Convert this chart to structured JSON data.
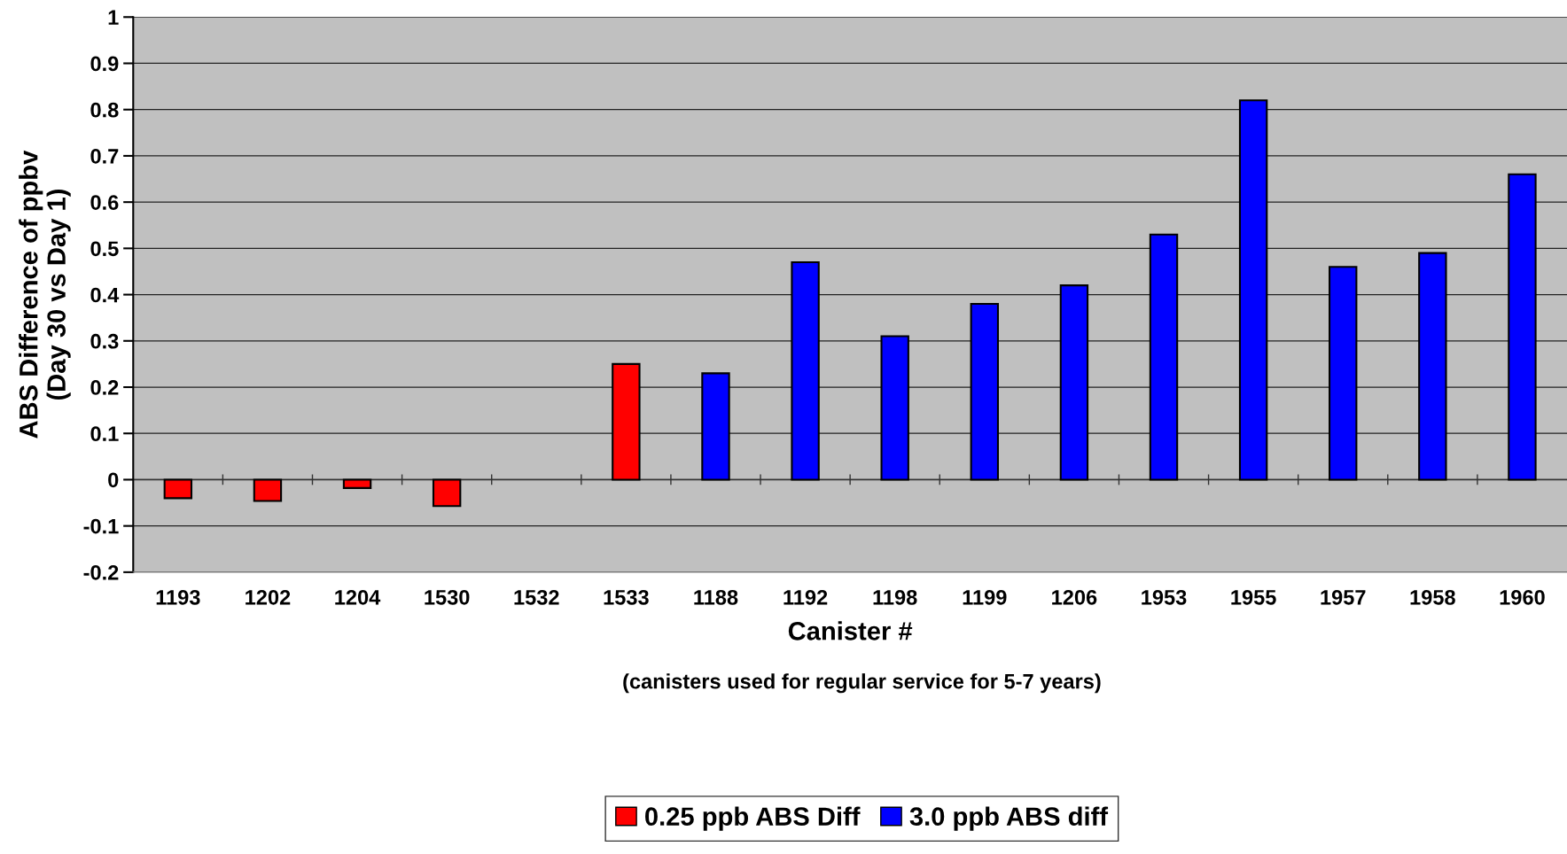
{
  "chart_data": {
    "type": "bar",
    "xlabel": "Canister #",
    "ylabel": "ABS Difference of ppbv\n(Day 30 vs Day 1)",
    "annotations": [
      "(canisters used for regular service for 5-7 years)"
    ],
    "categories": [
      "1193",
      "1202",
      "1204",
      "1530",
      "1532",
      "1533",
      "1188",
      "1192",
      "1198",
      "1199",
      "1206",
      "1953",
      "1955",
      "1957",
      "1958",
      "1960"
    ],
    "series": [
      {
        "name": "0.25 ppb ABS Diff",
        "color": "#ff0000",
        "values": [
          -0.04,
          -0.046,
          -0.018,
          -0.057,
          null,
          0.25,
          null,
          null,
          null,
          null,
          null,
          null,
          null,
          null,
          null,
          null
        ]
      },
      {
        "name": "3.0 ppb ABS diff",
        "color": "#0000ff",
        "values": [
          null,
          null,
          null,
          null,
          null,
          null,
          0.23,
          0.47,
          0.31,
          0.38,
          0.42,
          0.53,
          0.82,
          0.46,
          0.49,
          0.66
        ]
      }
    ],
    "ylim": [
      -0.2,
      1
    ],
    "yticks": [
      -0.2,
      -0.1,
      0,
      0.1,
      0.2,
      0.3,
      0.4,
      0.5,
      0.6,
      0.7,
      0.8,
      0.9,
      1
    ],
    "grid": "y",
    "legend": "bottom"
  }
}
